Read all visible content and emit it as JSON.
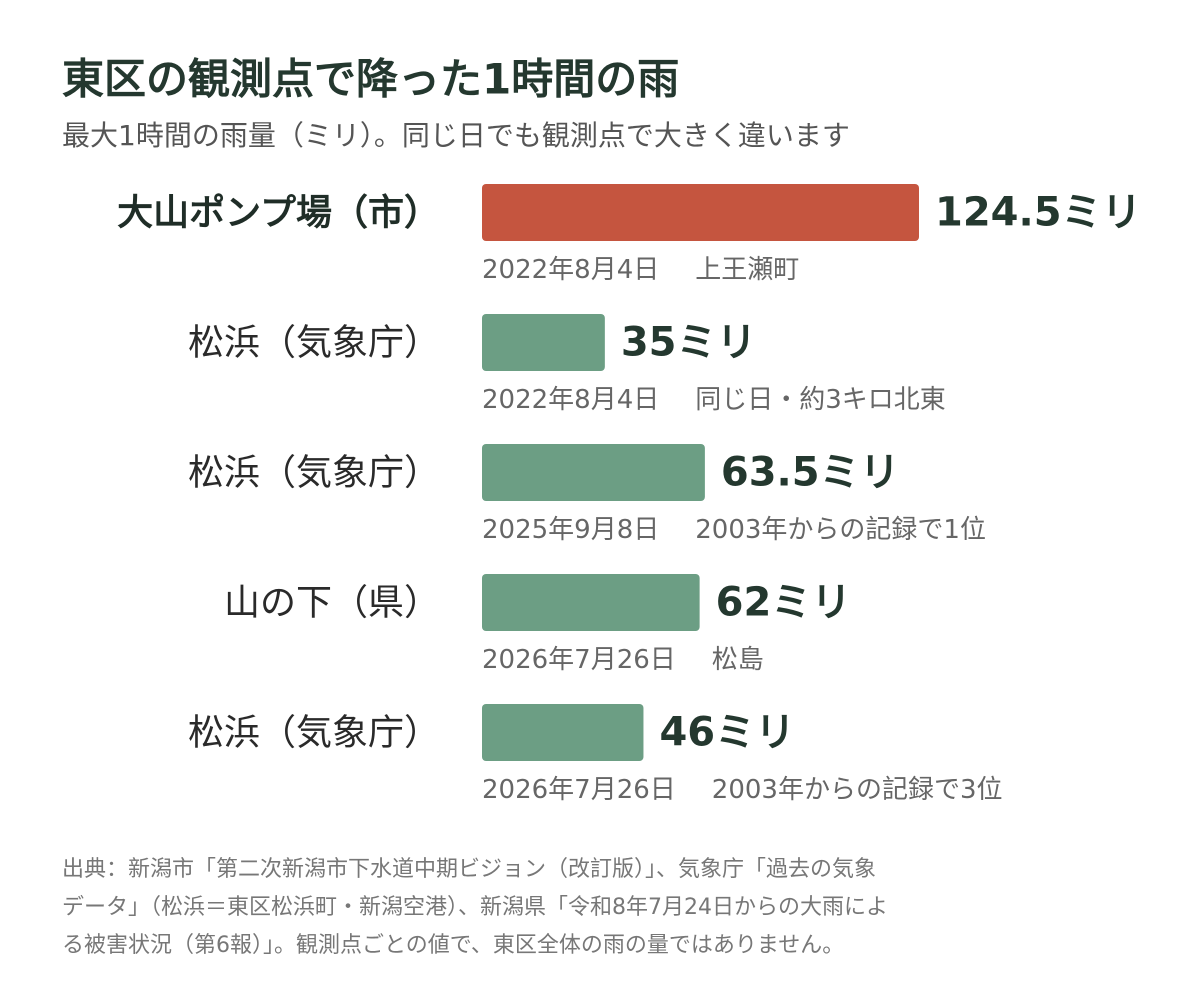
{
  "chart_data": {
    "type": "bar",
    "orientation": "horizontal",
    "title": "東区の観測点で降った1時間の雨",
    "subtitle": "最大1時間の雨量（ミリ）。同じ日でも観測点で大きく違います",
    "categories": [
      "大山ポンプ場（市）",
      "松浜（気象庁）",
      "松浜（気象庁）",
      "山の下（県）",
      "松浜（気象庁）"
    ],
    "values": [
      124.5,
      35,
      63.5,
      62,
      46
    ],
    "value_labels": [
      "124.5ミリ",
      "35ミリ",
      "63.5ミリ",
      "62ミリ",
      "46ミリ"
    ],
    "colors": [
      "#c5553f",
      "#6c9e84",
      "#6c9e84",
      "#6c9e84",
      "#6c9e84"
    ],
    "dates": [
      "2022年8月4日",
      "2022年8月4日",
      "2025年9月8日",
      "2026年7月26日",
      "2026年7月26日"
    ],
    "notes": [
      "上王瀬町",
      "同じ日・約3キロ北東",
      "2003年からの記録で1位",
      "松島",
      "2003年からの記録で3位"
    ],
    "footer": [
      "出典：新潟市「第二次新潟市下水道中期ビジョン（改訂版）」、気象庁「過去の気象",
      "データ」（松浜＝東区松浜町・新潟空港）、新潟県「令和8年7月24日からの大雨によ",
      "る被害状況（第6報）」。観測点ごとの値で、東区全体の雨の量ではありません。"
    ]
  }
}
